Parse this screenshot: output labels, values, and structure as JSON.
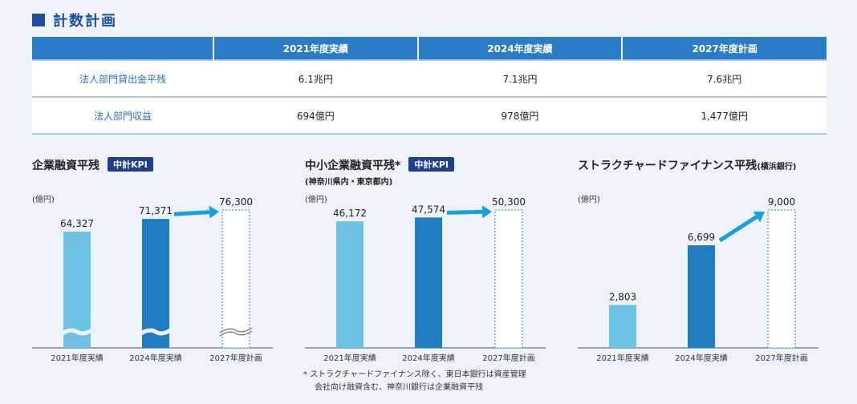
{
  "section": {
    "title": "計数計画"
  },
  "table": {
    "headers": [
      "",
      "2021年度実績",
      "2024年度実績",
      "2027年度計画"
    ],
    "rows": [
      {
        "label": "法人部門貸出金平残",
        "cells": [
          "6.1兆円",
          "7.1兆円",
          "7.6兆円"
        ]
      },
      {
        "label": "法人部門収益",
        "cells": [
          "694億円",
          "978億円",
          "1,477億円"
        ]
      }
    ]
  },
  "colors": {
    "actual": "#6ec1e4",
    "actual_dark": "#1f7cc0",
    "plan_border": "#2a7cc7",
    "arrow": "#1aa0dc",
    "kpi_bg": "#1f3f8c"
  },
  "chart_data": [
    {
      "type": "bar",
      "title": "企業融資平残",
      "badge": "中計KPI",
      "unit": "(億円)",
      "categories": [
        "2021年度実績",
        "2024年度実績",
        "2027年度計画"
      ],
      "values": [
        64327,
        71371,
        76300
      ],
      "labels": [
        "64,327",
        "71,371",
        "76,300"
      ],
      "axis_break": true
    },
    {
      "type": "bar",
      "title": "中小企業融資平残*",
      "badge": "中計KPI",
      "subtitle": "(神奈川県内・東京都内)",
      "unit": "(億円)",
      "categories": [
        "2021年度実績",
        "2024年度実績",
        "2027年度計画"
      ],
      "values": [
        46172,
        47574,
        50300
      ],
      "labels": [
        "46,172",
        "47,574",
        "50,300"
      ],
      "axis_break": false
    },
    {
      "type": "bar",
      "title": "ストラクチャードファイナンス平残",
      "title_suffix": "(横浜銀行)",
      "unit": "(億円)",
      "categories": [
        "2021年度実績",
        "2024年度実績",
        "2027年度計画"
      ],
      "values": [
        2803,
        6699,
        9000
      ],
      "labels": [
        "2,803",
        "6,699",
        "9,000"
      ],
      "axis_break": false
    }
  ],
  "footnote": {
    "line1": "* ストラクチャードファイナンス除く、東日本銀行は資産管理",
    "line2": "会社向け融資含む、神奈川銀行は企業融資平残"
  }
}
